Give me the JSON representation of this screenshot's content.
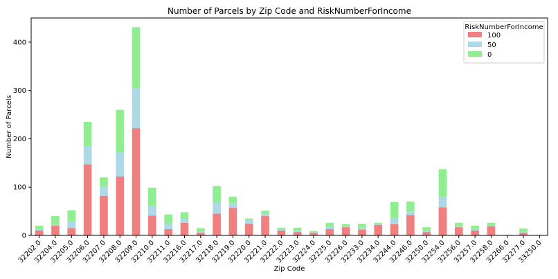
{
  "chart_data": {
    "type": "bar",
    "stacked": true,
    "title": "Number of Parcels by Zip Code and RiskNumberForIncome",
    "xlabel": "Zip Code",
    "ylabel": "Number of Parcels",
    "ylim": [
      0,
      450
    ],
    "yticks": [
      0,
      100,
      200,
      300,
      400
    ],
    "legend": {
      "title": "RiskNumberForIncome",
      "placement": "top-right"
    },
    "grid": false,
    "categories": [
      "32202.0",
      "32204.0",
      "32205.0",
      "32206.0",
      "32207.0",
      "32208.0",
      "32209.0",
      "32210.0",
      "32211.0",
      "32216.0",
      "32217.0",
      "32218.0",
      "32219.0",
      "32220.0",
      "32221.0",
      "32222.0",
      "32223.0",
      "32224.0",
      "32225.0",
      "32226.0",
      "32233.0",
      "32234.0",
      "32244.0",
      "32246.0",
      "32250.0",
      "32254.0",
      "32256.0",
      "32257.0",
      "32258.0",
      "32266.0",
      "32277.0",
      "33250.0"
    ],
    "series": [
      {
        "name": "100",
        "color": "#f08080",
        "values": [
          10,
          20,
          15,
          147,
          82,
          122,
          222,
          41,
          13,
          26,
          5,
          45,
          57,
          24,
          40,
          10,
          7,
          5,
          13,
          17,
          12,
          22,
          23,
          42,
          7,
          58,
          17,
          10,
          19,
          1,
          5,
          1
        ]
      },
      {
        "name": "50",
        "color": "#add8e6",
        "values": [
          3,
          2,
          15,
          38,
          20,
          50,
          83,
          20,
          12,
          8,
          3,
          23,
          10,
          8,
          5,
          2,
          2,
          1,
          5,
          2,
          4,
          2,
          13,
          8,
          3,
          22,
          2,
          3,
          2,
          0,
          2,
          0
        ]
      },
      {
        "name": "0",
        "color": "#90ee90",
        "values": [
          7,
          18,
          22,
          50,
          18,
          88,
          126,
          38,
          18,
          14,
          7,
          34,
          13,
          3,
          6,
          4,
          7,
          3,
          8,
          4,
          8,
          2,
          33,
          20,
          7,
          57,
          7,
          7,
          5,
          0,
          7,
          0
        ]
      }
    ]
  }
}
